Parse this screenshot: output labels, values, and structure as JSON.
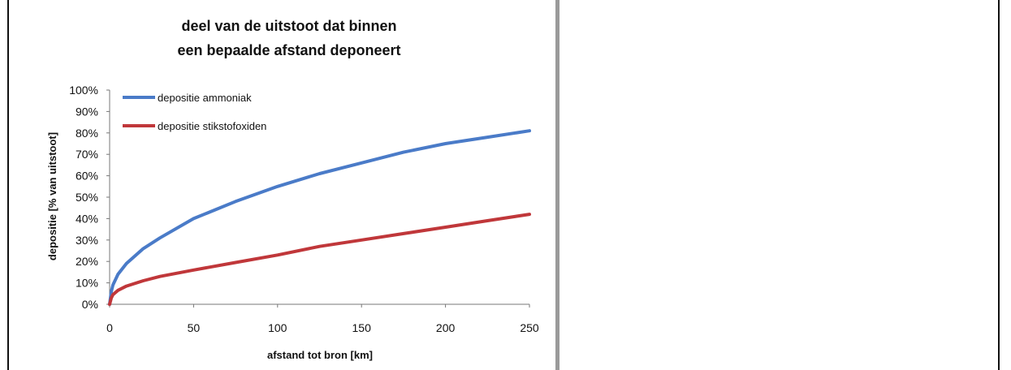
{
  "chart_data": {
    "type": "line",
    "title_lines": [
      "deel van de uitstoot dat binnen",
      "een bepaalde afstand deponeert"
    ],
    "xlabel": "afstand tot bron [km]",
    "ylabel": "depositie [% van uitstoot]",
    "xlim": [
      0,
      250
    ],
    "ylim": [
      0,
      100
    ],
    "xticks": [
      0,
      50,
      100,
      150,
      200,
      250
    ],
    "yticks": [
      0,
      10,
      20,
      30,
      40,
      50,
      60,
      70,
      80,
      90,
      100
    ],
    "ytick_labels": [
      "0%",
      "10%",
      "20%",
      "30%",
      "40%",
      "50%",
      "60%",
      "70%",
      "80%",
      "90%",
      "100%"
    ],
    "grid": false,
    "legend_position": "top-left",
    "series": [
      {
        "name": "depositie ammoniak",
        "color": "#4a7bc8",
        "x": [
          0,
          1,
          2,
          5,
          10,
          20,
          30,
          50,
          75,
          100,
          125,
          150,
          175,
          200,
          225,
          250
        ],
        "y": [
          0,
          6,
          9,
          14,
          19,
          26,
          31,
          40,
          48,
          55,
          61,
          66,
          71,
          75,
          78,
          81
        ]
      },
      {
        "name": "depositie stikstofoxiden",
        "color": "#c0373a",
        "x": [
          0,
          1,
          2,
          5,
          10,
          20,
          30,
          50,
          75,
          100,
          125,
          150,
          175,
          200,
          225,
          250
        ],
        "y": [
          0,
          3,
          4.5,
          6.5,
          8.5,
          11,
          13,
          16,
          19.5,
          23,
          27,
          30,
          33,
          36,
          39,
          42
        ]
      }
    ]
  }
}
